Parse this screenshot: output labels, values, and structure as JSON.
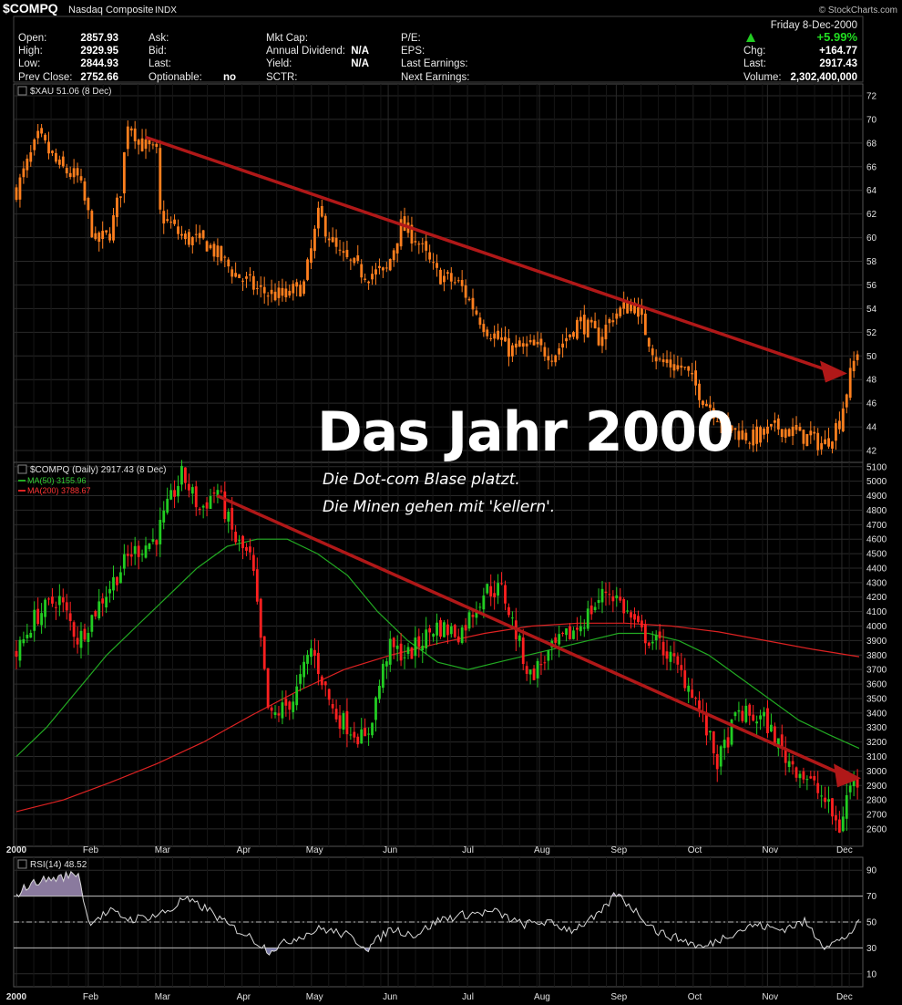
{
  "header": {
    "symbol": "$COMPQ",
    "name": "Nasdaq Composite",
    "exchange": "INDX",
    "watermark": "© StockCharts.com",
    "date": "Friday  8-Dec-2000",
    "pct_change": "+5.99%",
    "up_color": "#22cc22",
    "rows": [
      {
        "label": "Open:",
        "value": "2857.93"
      },
      {
        "label": "High:",
        "value": "2929.95"
      },
      {
        "label": "Low:",
        "value": "2844.93"
      },
      {
        "label": "Prev Close:",
        "value": "2752.66"
      }
    ],
    "col2": [
      {
        "label": "Ask:",
        "value": ""
      },
      {
        "label": "Bid:",
        "value": ""
      },
      {
        "label": "Last:",
        "value": ""
      },
      {
        "label": "Optionable:",
        "value": "no"
      }
    ],
    "col3": [
      {
        "label": "Mkt Cap:",
        "value": ""
      },
      {
        "label": "Annual Dividend:",
        "value": "N/A"
      },
      {
        "label": "Yield:",
        "value": "N/A"
      },
      {
        "label": "SCTR:",
        "value": ""
      }
    ],
    "col4": [
      {
        "label": "P/E:",
        "value": ""
      },
      {
        "label": "EPS:",
        "value": ""
      },
      {
        "label": "Last Earnings:",
        "value": ""
      },
      {
        "label": "Next Earnings:",
        "value": ""
      }
    ],
    "col5": [
      {
        "label": "Chg:",
        "value": "+164.77"
      },
      {
        "label": "Last:",
        "value": "2917.43"
      },
      {
        "label": "Volume:",
        "value": "2,302,400,000"
      }
    ]
  },
  "annotation": {
    "title": "Das Jahr 2000",
    "line1": "Die Dot-com Blase platzt.",
    "line2": "Die Minen gehen mit 'kellern'."
  },
  "chart_data": [
    {
      "type": "line",
      "legend": "$XAU 51.06 (8 Dec)",
      "ylim": [
        41,
        73
      ],
      "yticks": [
        42,
        44,
        46,
        48,
        50,
        52,
        54,
        56,
        58,
        60,
        62,
        64,
        66,
        68,
        70,
        72
      ],
      "color": "#ff7f1e",
      "x": [
        "2000-01-03",
        "2000-01-12",
        "2000-01-20",
        "2000-01-28",
        "2000-02-04",
        "2000-02-10",
        "2000-02-14",
        "2000-02-17",
        "2000-02-22",
        "2000-02-29",
        "2000-03-01",
        "2000-03-10",
        "2000-03-20",
        "2000-03-31",
        "2000-04-10",
        "2000-04-20",
        "2000-04-28",
        "2000-05-04",
        "2000-05-12",
        "2000-05-22",
        "2000-05-31",
        "2000-06-06",
        "2000-06-12",
        "2000-06-20",
        "2000-06-30",
        "2000-07-10",
        "2000-07-20",
        "2000-07-28",
        "2000-08-07",
        "2000-08-17",
        "2000-08-25",
        "2000-08-31",
        "2000-09-08",
        "2000-09-18",
        "2000-09-28",
        "2000-10-06",
        "2000-10-16",
        "2000-10-26",
        "2000-11-06",
        "2000-11-16",
        "2000-11-24",
        "2000-11-30",
        "2000-12-04",
        "2000-12-08"
      ],
      "values": [
        64,
        68.5,
        66,
        65,
        59.5,
        60.5,
        64,
        70,
        68,
        67,
        62,
        60,
        59.5,
        57,
        55.5,
        55,
        56,
        62,
        58.5,
        57,
        57,
        61,
        60,
        57,
        56,
        52.5,
        50.5,
        50.8,
        50.2,
        53,
        51.5,
        53.5,
        54.5,
        49.5,
        49,
        46.5,
        44,
        43,
        44,
        43.2,
        42.5,
        44.5,
        48,
        51.06
      ],
      "trendline": {
        "from": {
          "x": "2000-02-24",
          "y": 68.5
        },
        "to": {
          "x": "2000-12-01",
          "y": 48.6
        }
      }
    },
    {
      "type": "line",
      "legend": "$COMPQ (Daily) 2917.43 (8 Dec)",
      "ylim": [
        2480,
        5130
      ],
      "yticks": [
        2600,
        2700,
        2800,
        2900,
        3000,
        3100,
        3200,
        3300,
        3400,
        3500,
        3600,
        3700,
        3800,
        3900,
        4000,
        4100,
        4200,
        4300,
        4400,
        4500,
        4600,
        4700,
        4800,
        4900,
        5000,
        5100
      ],
      "up_color": "#22cc22",
      "down_color": "#ff2020",
      "x": [
        "2000-01-03",
        "2000-01-10",
        "2000-01-20",
        "2000-01-28",
        "2000-02-07",
        "2000-02-18",
        "2000-02-28",
        "2000-03-06",
        "2000-03-10",
        "2000-03-17",
        "2000-03-24",
        "2000-03-31",
        "2000-04-07",
        "2000-04-14",
        "2000-04-24",
        "2000-05-01",
        "2000-05-10",
        "2000-05-23",
        "2000-06-01",
        "2000-06-09",
        "2000-06-20",
        "2000-06-30",
        "2000-07-10",
        "2000-07-17",
        "2000-07-28",
        "2000-08-07",
        "2000-08-17",
        "2000-08-28",
        "2000-09-01",
        "2000-09-11",
        "2000-09-20",
        "2000-10-02",
        "2000-10-12",
        "2000-10-20",
        "2000-10-31",
        "2000-11-08",
        "2000-11-17",
        "2000-11-24",
        "2000-11-30",
        "2000-12-04",
        "2000-12-08"
      ],
      "values": [
        3800,
        4050,
        4200,
        3900,
        4200,
        4500,
        4600,
        4900,
        5050,
        4800,
        4950,
        4600,
        4450,
        3350,
        3500,
        3850,
        3400,
        3200,
        3850,
        3800,
        4000,
        3950,
        4250,
        4250,
        3650,
        3850,
        4000,
        4250,
        4200,
        3950,
        3850,
        3550,
        3050,
        3400,
        3350,
        3100,
        2950,
        2800,
        2600,
        2900,
        2917.43
      ],
      "ma50": {
        "name": "MA(50) 3155.96",
        "color": "#22aa22",
        "values": [
          3100,
          3300,
          3550,
          3800,
          4000,
          4200,
          4400,
          4550,
          4600,
          4600,
          4500,
          4350,
          4100,
          3900,
          3750,
          3700,
          3750,
          3800,
          3850,
          3900,
          3950,
          3950,
          3900,
          3800,
          3650,
          3500,
          3350,
          3250,
          3155.96
        ]
      },
      "ma200": {
        "name": "MA(200) 3788.67",
        "color": "#dd2222",
        "values": [
          2720,
          2800,
          2920,
          3050,
          3200,
          3380,
          3550,
          3700,
          3800,
          3880,
          3950,
          4000,
          4020,
          4020,
          4000,
          3960,
          3900,
          3840,
          3788.67
        ]
      },
      "trendline": {
        "from": {
          "x": "2000-03-24",
          "y": 4900
        },
        "to": {
          "x": "2000-12-08",
          "y": 3000
        }
      }
    },
    {
      "type": "area",
      "legend": "RSI(14) 48.52",
      "ylim": [
        0,
        100
      ],
      "yticks": [
        10,
        30,
        50,
        70,
        90
      ],
      "levels": [
        30,
        50,
        70
      ],
      "x": [
        "2000-01-03",
        "2000-01-05",
        "2000-01-12",
        "2000-01-20",
        "2000-01-28",
        "2000-02-01",
        "2000-02-10",
        "2000-02-18",
        "2000-02-28",
        "2000-03-06",
        "2000-03-10",
        "2000-03-20",
        "2000-03-28",
        "2000-04-05",
        "2000-04-14",
        "2000-04-25",
        "2000-05-05",
        "2000-05-15",
        "2000-05-24",
        "2000-06-02",
        "2000-06-12",
        "2000-06-22",
        "2000-07-03",
        "2000-07-14",
        "2000-07-25",
        "2000-08-03",
        "2000-08-14",
        "2000-08-25",
        "2000-09-01",
        "2000-09-08",
        "2000-09-18",
        "2000-09-28",
        "2000-10-06",
        "2000-10-16",
        "2000-10-27",
        "2000-11-06",
        "2000-11-16",
        "2000-11-24",
        "2000-12-01",
        "2000-12-08"
      ],
      "values": [
        70,
        75,
        82,
        84,
        88,
        50,
        58,
        52,
        55,
        60,
        68,
        60,
        48,
        40,
        28,
        38,
        45,
        40,
        30,
        45,
        40,
        52,
        56,
        58,
        48,
        50,
        44,
        55,
        72,
        60,
        42,
        36,
        30,
        40,
        48,
        44,
        50,
        32,
        36,
        48.52
      ]
    }
  ],
  "months": [
    "2000",
    "Feb",
    "Mar",
    "Apr",
    "May",
    "Jun",
    "Jul",
    "Aug",
    "Sep",
    "Oct",
    "Nov",
    "Dec"
  ]
}
